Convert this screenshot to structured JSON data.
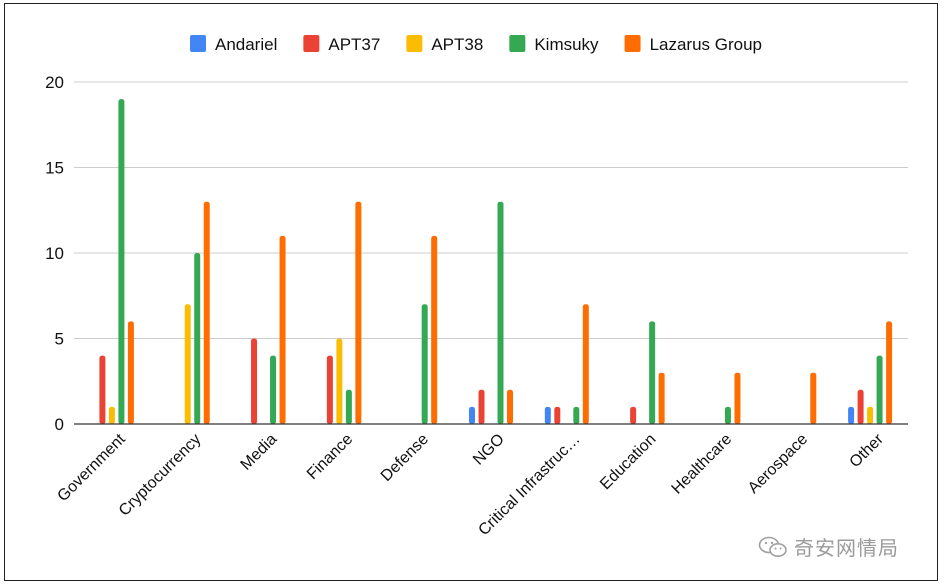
{
  "chart_data": {
    "type": "bar",
    "title": "",
    "xlabel": "",
    "ylabel": "",
    "ylim": [
      0,
      20
    ],
    "yticks": [
      0,
      5,
      10,
      15,
      20
    ],
    "grid": true,
    "legend_position": "top",
    "categories": [
      "Government",
      "Cryptocurrency",
      "Media",
      "Finance",
      "Defense",
      "NGO",
      "Critical Infrastruc…",
      "Education",
      "Healthcare",
      "Aerospace",
      "Other"
    ],
    "series": [
      {
        "name": "Andariel",
        "color": "#4285f4",
        "values": [
          0,
          0,
          0,
          0,
          0,
          1,
          1,
          0,
          0,
          0,
          1
        ]
      },
      {
        "name": "APT37",
        "color": "#ea4335",
        "values": [
          4,
          0,
          5,
          4,
          0,
          2,
          1,
          1,
          0,
          0,
          2
        ]
      },
      {
        "name": "APT38",
        "color": "#fbbc04",
        "values": [
          1,
          7,
          0,
          5,
          0,
          0,
          0,
          0,
          0,
          0,
          1
        ]
      },
      {
        "name": "Kimsuky",
        "color": "#34a853",
        "values": [
          19,
          10,
          4,
          2,
          7,
          13,
          1,
          6,
          1,
          0,
          4
        ]
      },
      {
        "name": "Lazarus Group",
        "color": "#ff6d01",
        "values": [
          6,
          13,
          11,
          13,
          11,
          2,
          7,
          3,
          3,
          3,
          6
        ]
      }
    ]
  },
  "watermark": {
    "text": "奇安网情局",
    "icon": "wechat-icon"
  }
}
